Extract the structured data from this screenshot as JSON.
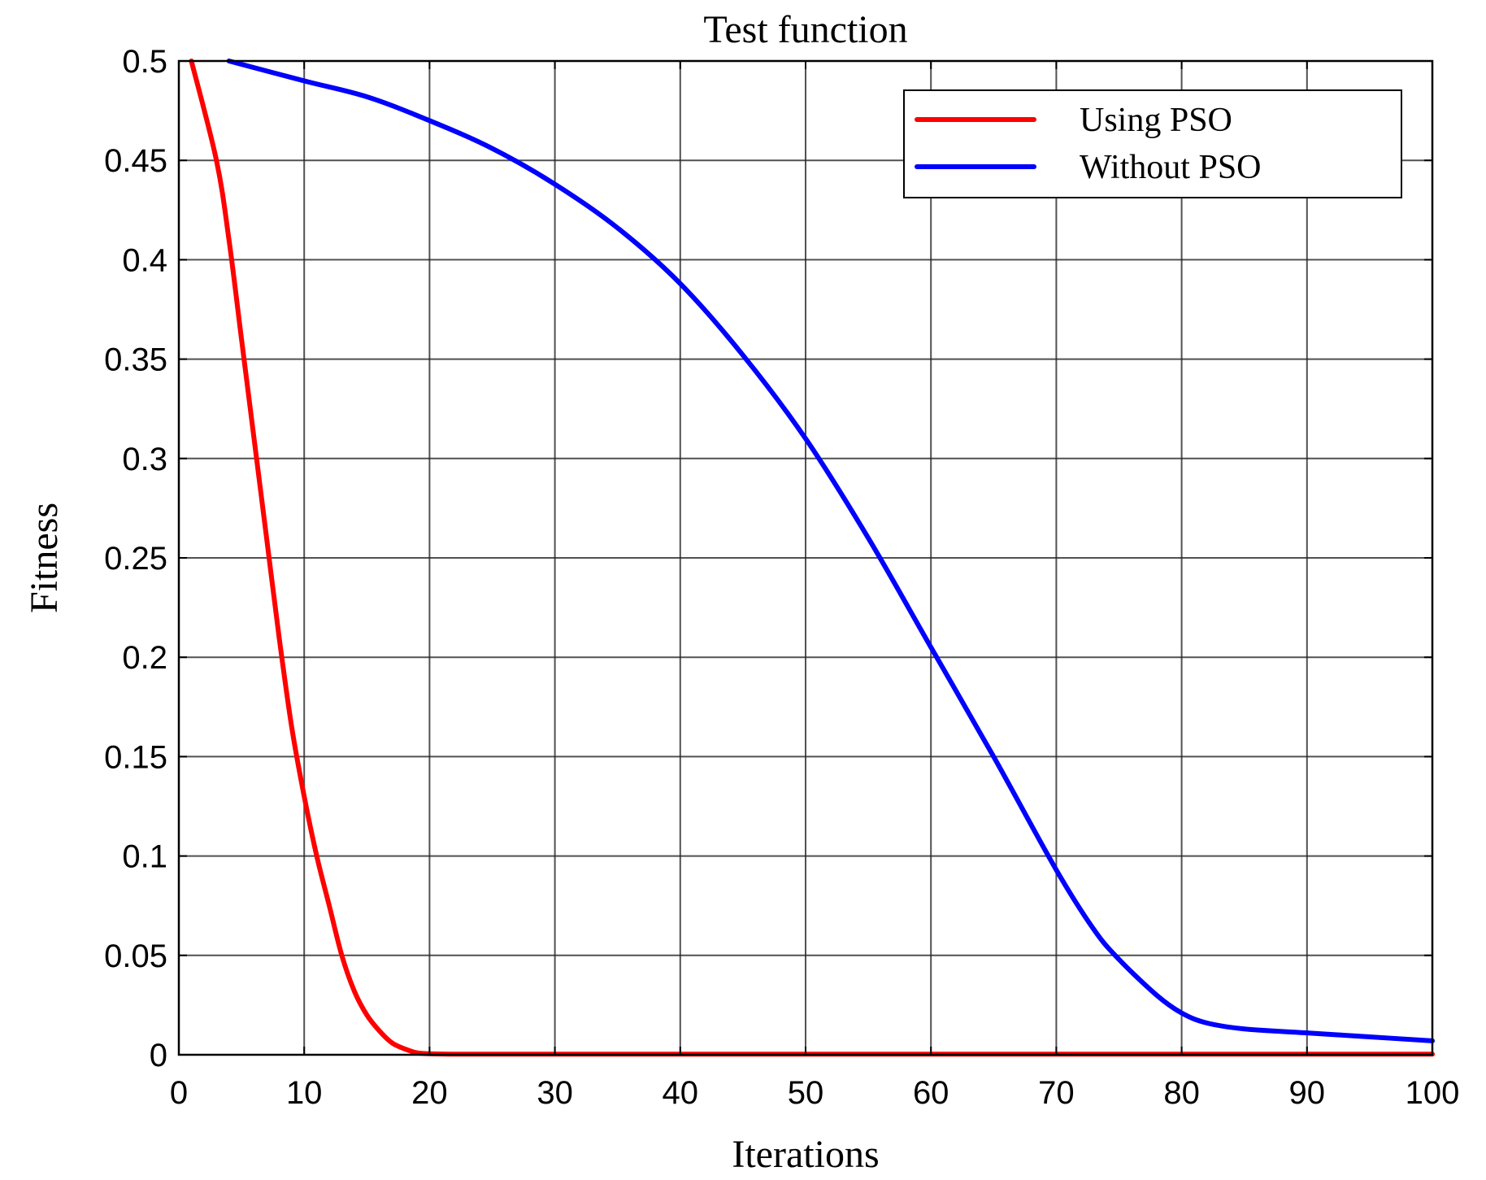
{
  "chart_data": {
    "type": "line",
    "title": "Test function",
    "xlabel": "Iterations",
    "ylabel": "Fitness",
    "xlim": [
      0,
      100
    ],
    "ylim": [
      0,
      0.5
    ],
    "xticks": [
      0,
      10,
      20,
      30,
      40,
      50,
      60,
      70,
      80,
      90,
      100
    ],
    "xtick_labels": [
      "0",
      "10",
      "20",
      "30",
      "40",
      "50",
      "60",
      "70",
      "80",
      "90",
      "100"
    ],
    "yticks": [
      0,
      0.05,
      0.1,
      0.15,
      0.2,
      0.25,
      0.3,
      0.35,
      0.4,
      0.45,
      0.5
    ],
    "ytick_labels": [
      "0",
      "0.05",
      "0.1",
      "0.15",
      "0.2",
      "0.25",
      "0.3",
      "0.35",
      "0.4",
      "0.45",
      "0.5"
    ],
    "grid": true,
    "legend_position": "top-right",
    "series": [
      {
        "name": "Using PSO",
        "color": "#ff0000",
        "x": [
          1,
          3,
          4,
          5,
          6,
          7,
          8,
          9,
          10,
          11,
          12,
          13,
          14,
          15,
          16,
          17,
          18,
          19,
          20,
          22,
          25,
          30,
          40,
          50,
          60,
          70,
          80,
          90,
          100
        ],
        "y": [
          0.5,
          0.45,
          0.41,
          0.36,
          0.31,
          0.26,
          0.21,
          0.165,
          0.13,
          0.1,
          0.075,
          0.05,
          0.032,
          0.02,
          0.012,
          0.006,
          0.003,
          0.001,
          0.0005,
          0.0003,
          0.0003,
          0.0003,
          0.0003,
          0.0003,
          0.0003,
          0.0003,
          0.0003,
          0.0003,
          0.0003
        ]
      },
      {
        "name": "Without PSO",
        "color": "#0000ff",
        "x": [
          4,
          10,
          15,
          20,
          25,
          30,
          35,
          40,
          45,
          50,
          55,
          60,
          65,
          70,
          73,
          75,
          78,
          80,
          82,
          85,
          90,
          95,
          100
        ],
        "y": [
          0.5,
          0.49,
          0.482,
          0.47,
          0.456,
          0.438,
          0.416,
          0.388,
          0.352,
          0.31,
          0.26,
          0.205,
          0.15,
          0.093,
          0.063,
          0.048,
          0.03,
          0.021,
          0.016,
          0.013,
          0.011,
          0.009,
          0.007
        ]
      }
    ]
  }
}
